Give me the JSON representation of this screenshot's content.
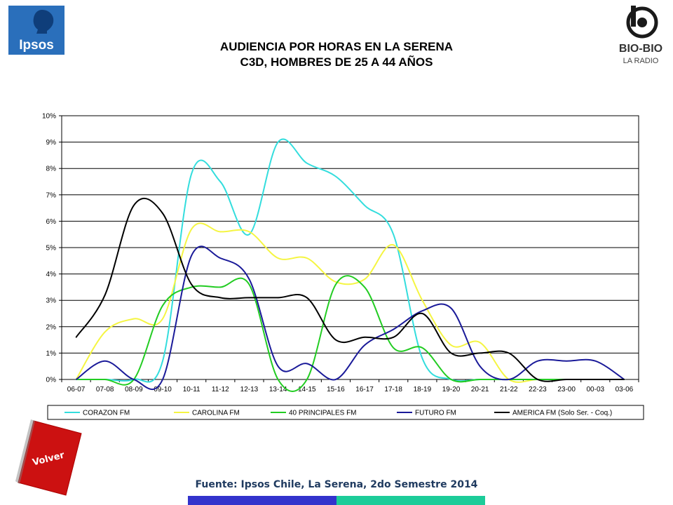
{
  "header": {
    "title_line1": "AUDIENCIA POR HORAS EN LA SERENA",
    "title_line2": "C3D, HOMBRES DE 25 A 44 AÑOS",
    "logo_left": "Ipsos",
    "logo_right_name": "BIO-BIO",
    "logo_right_sub": "LA RADIO"
  },
  "footer": {
    "source": "Fuente: Ipsos Chile, La Serena, 2do Semestre 2014",
    "volver_label": "Volver",
    "colors": {
      "bar_left": "#3333cc",
      "bar_right": "#1ccc99"
    }
  },
  "chart_data": {
    "type": "line",
    "categories": [
      "06-07",
      "07-08",
      "08-09",
      "09-10",
      "10-11",
      "11-12",
      "12-13",
      "13-14",
      "14-15",
      "15-16",
      "16-17",
      "17-18",
      "18-19",
      "19-20",
      "20-21",
      "21-22",
      "22-23",
      "23-00",
      "00-03",
      "03-06"
    ],
    "ylim": [
      0,
      10
    ],
    "yticks": [
      "0%",
      "1%",
      "2%",
      "3%",
      "4%",
      "5%",
      "6%",
      "7%",
      "8%",
      "9%",
      "10%"
    ],
    "grid": true,
    "legend_position": "bottom",
    "series": [
      {
        "name": "CORAZON FM",
        "color": "#33dddd",
        "values": [
          0,
          0,
          0,
          0.7,
          7.8,
          7.5,
          5.5,
          9.0,
          8.2,
          7.7,
          6.6,
          5.5,
          0.8,
          0,
          0,
          0,
          0,
          0,
          0,
          0
        ]
      },
      {
        "name": "CAROLINA FM",
        "color": "#f5f542",
        "values": [
          0,
          1.8,
          2.3,
          2.3,
          5.7,
          5.6,
          5.6,
          4.6,
          4.6,
          3.7,
          3.8,
          5.1,
          3.0,
          1.3,
          1.4,
          0,
          0,
          0,
          0,
          0
        ]
      },
      {
        "name": "40 PRINCIPALES FM",
        "color": "#22cc22",
        "values": [
          0,
          0,
          0,
          2.8,
          3.5,
          3.5,
          3.6,
          0,
          0,
          3.6,
          3.5,
          1.2,
          1.2,
          0,
          0,
          0,
          0,
          0,
          0,
          0
        ]
      },
      {
        "name": "FUTURO FM",
        "color": "#1a1a99",
        "values": [
          0,
          0.7,
          0,
          0,
          4.7,
          4.6,
          3.8,
          0.5,
          0.6,
          0,
          1.3,
          1.9,
          2.6,
          2.7,
          0.5,
          0,
          0.7,
          0.7,
          0.7,
          0
        ]
      },
      {
        "name": "AMERICA FM  (Solo Ser. - Coq.)",
        "color": "#000000",
        "values": [
          1.6,
          3.2,
          6.6,
          6.3,
          3.6,
          3.1,
          3.1,
          3.1,
          3.1,
          1.5,
          1.6,
          1.6,
          2.5,
          1.0,
          1.0,
          1.0,
          0,
          0,
          0,
          0
        ]
      }
    ]
  }
}
